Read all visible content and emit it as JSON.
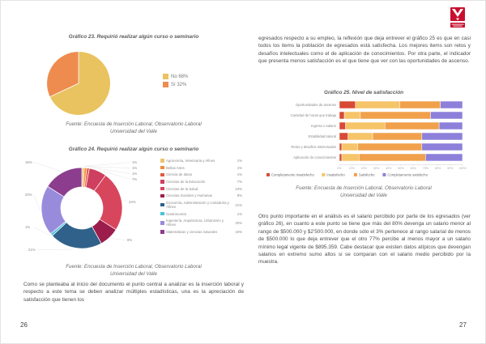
{
  "fuente": {
    "line1": "Fuente: Encuesta de Inserción Laboral, Observatorio Laboral",
    "line2": "Universidad del Valle"
  },
  "document": {
    "left_page": {
      "page_number": "26",
      "paragraph": "Como se planteaba al inicio del documento el punto central a analizar es la inserción laboral y respecto a este tema se deben analizar múltiples estadísticas, una es la apreciación de satisfacción que tienen los"
    },
    "right_page": {
      "page_number": "27",
      "logo_name": "Universidad del Valle",
      "paragraph_top": "egresados respecto a su empleo, la reflexión que deja entrever el gráfico 25 es que en casi todos los items la población de egresados está satisfecha. Los mejores items son retos y desafíos intelectuales como el de aplicación de conocimientos. Por otra parte, el indicador que presenta menos satisfacción es el que tiene que ver con las oportunidades de ascenso.",
      "paragraph_bottom": "Otro punto importante en el análisis es el salario percibido por parte de los egresados (ver gráfico 26), en cuanto a este punto se tiene que más del 80% devenga un salario menor al rango de $500.000 y $2'500.000, en donde sólo el 3% pertenece al rango salarial de menos de $500.000 lo que deja entrever que el otro 77% percibe al menos mayor a un salario mínimo legal vigente de $895.359. Cabe destacar que existen datos atípicos que devengan salarios en extremo sumo altos si se comparan con el salario medio percibido por la muestra."
    }
  },
  "chart_data": [
    {
      "type": "pie",
      "title": "Gráfico 23. Requirió realizar algún curso o seminario",
      "labels": [
        "No",
        "Sí"
      ],
      "values": [
        68,
        32
      ],
      "colors": [
        "#e9c35f",
        "#ee8c4f"
      ],
      "legend": [
        {
          "label": "No",
          "pct": "68%"
        },
        {
          "label": "Sí",
          "pct": "32%"
        }
      ],
      "legend_position": "right",
      "start_angle": 0,
      "clockwise": true
    },
    {
      "type": "pie",
      "subtype": "donut",
      "title": "Gráfico 24. Requirió realizar algún curso o seminario",
      "labels": [
        "Agronomía, Veterinaria y Afines",
        "Bellas Artes",
        "Ciencia de datos",
        "Ciencias de la Educación",
        "Ciencias de la Salud",
        "Ciencias Sociales y Humanas",
        "Economía, Administración y contaduría y Afines",
        "Gastronomía",
        "Ingeniería, Arquitectura, Urbanismo y Afines",
        "Matemáticas y ciencias naturales"
      ],
      "values": [
        1,
        1,
        1,
        7,
        24,
        8,
        21,
        1,
        20,
        16
      ],
      "pct_labels": [
        "1%",
        "1%",
        "1%",
        "7%",
        "24%",
        "8%",
        "21%",
        "1%",
        "20%",
        "16%"
      ],
      "colors": [
        "#efc272",
        "#f08d3f",
        "#e25a40",
        "#cf3f60",
        "#d8465e",
        "#9c1d4c",
        "#30618a",
        "#49c2d8",
        "#998bdc",
        "#8c3d8d"
      ],
      "inner_radius_ratio": 0.52,
      "label_pos": [
        [
          134,
          8
        ],
        [
          134,
          15
        ],
        [
          134,
          22
        ],
        [
          134,
          29
        ],
        [
          130,
          57
        ],
        [
          128,
          104
        ],
        [
          6,
          116
        ],
        [
          2,
          88
        ],
        [
          2,
          48
        ],
        [
          2,
          8
        ]
      ],
      "legend_position": "right",
      "start_angle": 0,
      "clockwise": true
    },
    {
      "type": "bar",
      "orientation": "horizontal",
      "stacked": "100%",
      "title": "Gráfico 25. Nivel de satisfacción",
      "categories": [
        "Oportunidades de ascenso",
        "Cantidad de horas que trabaja",
        "Ingreso o salario",
        "Estabilidad laboral",
        "Retos y desafíos intelectuales",
        "Aplicación de conocimientos"
      ],
      "series": [
        {
          "name": "Completamente insatisfecho",
          "color": "#d84936",
          "values": [
            13,
            4,
            5,
            7,
            2,
            2
          ]
        },
        {
          "name": "Insatisfecho",
          "color": "#f6c469",
          "values": [
            36,
            13,
            32,
            20,
            13,
            14
          ]
        },
        {
          "name": "Satisfecho",
          "color": "#f1a14c",
          "values": [
            33,
            57,
            44,
            40,
            52,
            54
          ]
        },
        {
          "name": "Completamente satisfecho",
          "color": "#8d80da",
          "values": [
            18,
            26,
            19,
            33,
            33,
            30
          ]
        }
      ],
      "x_ticks": [
        "0%",
        "10%",
        "20%",
        "30%",
        "40%",
        "50%",
        "60%",
        "70%",
        "80%",
        "90%",
        "100%"
      ],
      "xlim": [
        0,
        100
      ],
      "legend_position": "bottom",
      "grid": false
    }
  ]
}
